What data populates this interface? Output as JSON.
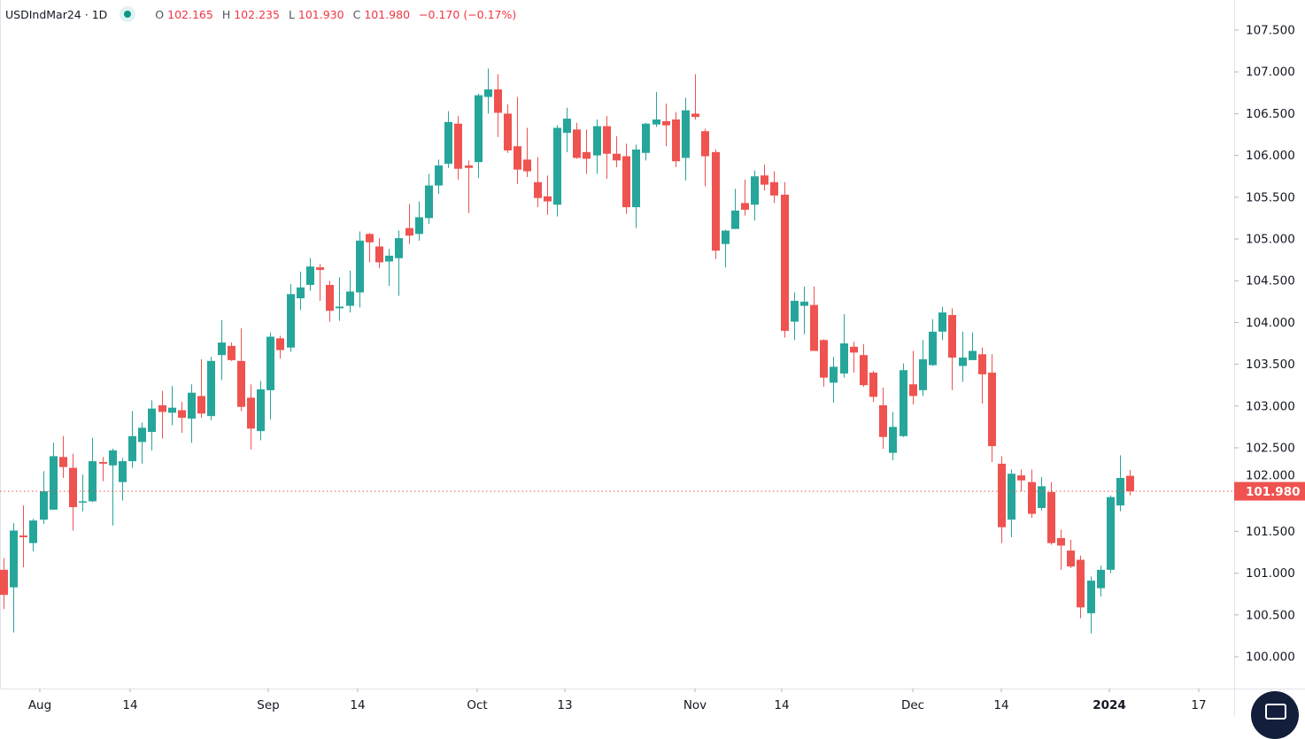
{
  "header": {
    "symbol": "USDIndMar24",
    "separator": "·",
    "interval": "1D",
    "open_label": "O",
    "open": "102.165",
    "high_label": "H",
    "high": "102.235",
    "low_label": "L",
    "low": "101.930",
    "close_label": "C",
    "close": "101.980",
    "change": "−0.170",
    "change_pct": "(−0.17%)",
    "status_icon": "market-status-dot-icon"
  },
  "colors": {
    "up": "#26a69a",
    "down": "#ef5350",
    "price_line": "#ef5350",
    "grid": "#e0e3eb",
    "text": "#131722"
  },
  "chart_data": {
    "type": "candlestick",
    "title": "",
    "interval": "1D",
    "ylim": [
      99.75,
      107.8
    ],
    "y_ticks": [
      "100.000",
      "100.500",
      "101.000",
      "101.500",
      "102.000",
      "102.500",
      "103.000",
      "103.500",
      "104.000",
      "104.500",
      "105.000",
      "105.500",
      "106.000",
      "106.500",
      "107.000",
      "107.500"
    ],
    "x_ticks": [
      "Aug",
      "14",
      "Sep",
      "14",
      "Oct",
      "13",
      "Nov",
      "14",
      "Dec",
      "14",
      "2024",
      "17"
    ],
    "x_ticks_bold": [
      "2024"
    ],
    "last_price_label": "101.980",
    "last_price": 101.98,
    "grid": false,
    "ohlc_format": [
      "open",
      "high",
      "low",
      "close"
    ],
    "ohlc": [
      [
        101.04,
        101.18,
        100.57,
        100.74
      ],
      [
        100.83,
        101.6,
        100.29,
        101.51
      ],
      [
        101.45,
        101.81,
        101.07,
        101.43
      ],
      [
        101.36,
        101.65,
        101.26,
        101.63
      ],
      [
        101.64,
        102.22,
        101.59,
        101.98
      ],
      [
        101.76,
        102.56,
        101.76,
        102.4
      ],
      [
        102.39,
        102.64,
        102.14,
        102.27
      ],
      [
        102.26,
        102.43,
        101.51,
        101.79
      ],
      [
        101.85,
        102.18,
        101.74,
        101.86
      ],
      [
        101.86,
        102.62,
        101.85,
        102.34
      ],
      [
        102.33,
        102.39,
        102.1,
        102.31
      ],
      [
        102.29,
        102.49,
        101.57,
        102.47
      ],
      [
        102.09,
        102.38,
        101.87,
        102.34
      ],
      [
        102.34,
        102.94,
        102.26,
        102.64
      ],
      [
        102.57,
        102.8,
        102.31,
        102.74
      ],
      [
        102.69,
        103.07,
        102.47,
        102.97
      ],
      [
        103.01,
        103.18,
        102.61,
        102.93
      ],
      [
        102.92,
        103.24,
        102.77,
        102.98
      ],
      [
        102.95,
        103.05,
        102.68,
        102.86
      ],
      [
        102.85,
        103.26,
        102.56,
        103.16
      ],
      [
        103.12,
        103.56,
        102.86,
        102.91
      ],
      [
        102.88,
        103.59,
        102.83,
        103.54
      ],
      [
        103.61,
        104.03,
        103.31,
        103.76
      ],
      [
        103.72,
        103.76,
        103.54,
        103.55
      ],
      [
        103.54,
        103.93,
        102.94,
        102.99
      ],
      [
        103.1,
        103.26,
        102.48,
        102.73
      ],
      [
        102.7,
        103.3,
        102.59,
        103.2
      ],
      [
        103.19,
        103.88,
        102.84,
        103.83
      ],
      [
        103.81,
        103.84,
        103.57,
        103.67
      ],
      [
        103.7,
        104.46,
        103.65,
        104.34
      ],
      [
        104.29,
        104.61,
        104.15,
        104.42
      ],
      [
        104.45,
        104.77,
        104.38,
        104.67
      ],
      [
        104.66,
        104.7,
        104.26,
        104.63
      ],
      [
        104.45,
        104.5,
        104.01,
        104.14
      ],
      [
        104.17,
        104.54,
        104.02,
        104.19
      ],
      [
        104.2,
        104.62,
        104.12,
        104.37
      ],
      [
        104.36,
        105.09,
        104.18,
        104.98
      ],
      [
        105.06,
        105.07,
        104.72,
        104.96
      ],
      [
        104.91,
        105.01,
        104.65,
        104.72
      ],
      [
        104.73,
        104.88,
        104.44,
        104.8
      ],
      [
        104.77,
        105.1,
        104.32,
        105.01
      ],
      [
        105.13,
        105.42,
        104.94,
        105.04
      ],
      [
        105.06,
        105.45,
        104.98,
        105.26
      ],
      [
        105.25,
        105.78,
        105.18,
        105.64
      ],
      [
        105.64,
        105.95,
        105.54,
        105.88
      ],
      [
        105.9,
        106.53,
        105.85,
        106.4
      ],
      [
        106.38,
        106.47,
        105.71,
        105.84
      ],
      [
        105.88,
        105.94,
        105.31,
        105.85
      ],
      [
        105.92,
        106.74,
        105.73,
        106.72
      ],
      [
        106.7,
        107.04,
        106.5,
        106.79
      ],
      [
        106.79,
        106.97,
        106.22,
        106.51
      ],
      [
        106.5,
        106.61,
        106.03,
        106.06
      ],
      [
        106.11,
        106.7,
        105.66,
        105.83
      ],
      [
        105.95,
        106.33,
        105.74,
        105.81
      ],
      [
        105.68,
        105.98,
        105.38,
        105.49
      ],
      [
        105.51,
        105.76,
        105.29,
        105.45
      ],
      [
        105.41,
        106.36,
        105.27,
        106.33
      ],
      [
        106.27,
        106.57,
        106.04,
        106.44
      ],
      [
        106.31,
        106.39,
        105.96,
        105.97
      ],
      [
        106.04,
        106.31,
        105.78,
        105.96
      ],
      [
        106.0,
        106.43,
        105.78,
        106.35
      ],
      [
        106.35,
        106.47,
        105.72,
        106.02
      ],
      [
        106.02,
        106.23,
        105.86,
        105.94
      ],
      [
        105.99,
        106.14,
        105.3,
        105.38
      ],
      [
        105.38,
        106.13,
        105.13,
        106.07
      ],
      [
        106.03,
        106.39,
        105.94,
        106.38
      ],
      [
        106.37,
        106.76,
        106.34,
        106.43
      ],
      [
        106.41,
        106.62,
        106.11,
        106.36
      ],
      [
        106.43,
        106.52,
        105.86,
        105.93
      ],
      [
        105.97,
        106.69,
        105.7,
        106.54
      ],
      [
        106.5,
        106.97,
        106.43,
        106.46
      ],
      [
        106.29,
        106.32,
        105.63,
        105.99
      ],
      [
        106.04,
        106.07,
        104.76,
        104.86
      ],
      [
        104.94,
        105.11,
        104.66,
        105.1
      ],
      [
        105.12,
        105.6,
        105.12,
        105.34
      ],
      [
        105.43,
        105.71,
        105.28,
        105.35
      ],
      [
        105.41,
        105.82,
        105.22,
        105.75
      ],
      [
        105.76,
        105.89,
        105.58,
        105.65
      ],
      [
        105.68,
        105.81,
        105.43,
        105.52
      ],
      [
        105.53,
        105.68,
        103.82,
        103.9
      ],
      [
        104.01,
        104.36,
        103.79,
        104.26
      ],
      [
        104.2,
        104.43,
        103.86,
        104.25
      ],
      [
        104.21,
        104.43,
        103.66,
        103.66
      ],
      [
        103.79,
        103.8,
        103.23,
        103.34
      ],
      [
        103.28,
        103.59,
        103.04,
        103.47
      ],
      [
        103.39,
        104.1,
        103.34,
        103.75
      ],
      [
        103.71,
        103.77,
        103.4,
        103.64
      ],
      [
        103.61,
        103.74,
        103.23,
        103.25
      ],
      [
        103.4,
        103.42,
        103.05,
        103.11
      ],
      [
        103.01,
        103.22,
        102.49,
        102.63
      ],
      [
        102.44,
        102.93,
        102.35,
        102.75
      ],
      [
        102.64,
        103.51,
        102.63,
        103.43
      ],
      [
        103.26,
        103.66,
        103.02,
        103.12
      ],
      [
        103.19,
        103.79,
        103.12,
        103.56
      ],
      [
        103.49,
        104.04,
        103.48,
        103.89
      ],
      [
        103.89,
        104.19,
        103.79,
        104.12
      ],
      [
        104.09,
        104.17,
        103.19,
        103.58
      ],
      [
        103.48,
        103.89,
        103.29,
        103.58
      ],
      [
        103.55,
        103.88,
        103.55,
        103.66
      ],
      [
        103.62,
        103.7,
        103.03,
        103.38
      ],
      [
        103.4,
        103.62,
        102.33,
        102.52
      ],
      [
        102.31,
        102.4,
        101.36,
        101.55
      ],
      [
        101.64,
        102.24,
        101.43,
        102.19
      ],
      [
        102.17,
        102.24,
        101.98,
        102.11
      ],
      [
        102.09,
        102.24,
        101.66,
        101.71
      ],
      [
        101.78,
        102.15,
        101.75,
        102.04
      ],
      [
        101.97,
        102.09,
        101.34,
        101.36
      ],
      [
        101.42,
        101.52,
        101.04,
        101.33
      ],
      [
        101.27,
        101.4,
        101.06,
        101.08
      ],
      [
        101.16,
        101.21,
        100.46,
        100.59
      ],
      [
        100.52,
        100.96,
        100.28,
        100.91
      ],
      [
        100.82,
        101.09,
        100.72,
        101.04
      ],
      [
        101.04,
        101.93,
        101.0,
        101.91
      ],
      [
        101.81,
        102.41,
        101.74,
        102.14
      ],
      [
        102.165,
        102.235,
        101.93,
        101.98
      ]
    ]
  },
  "floating_button": {
    "icon": "chat-icon"
  }
}
